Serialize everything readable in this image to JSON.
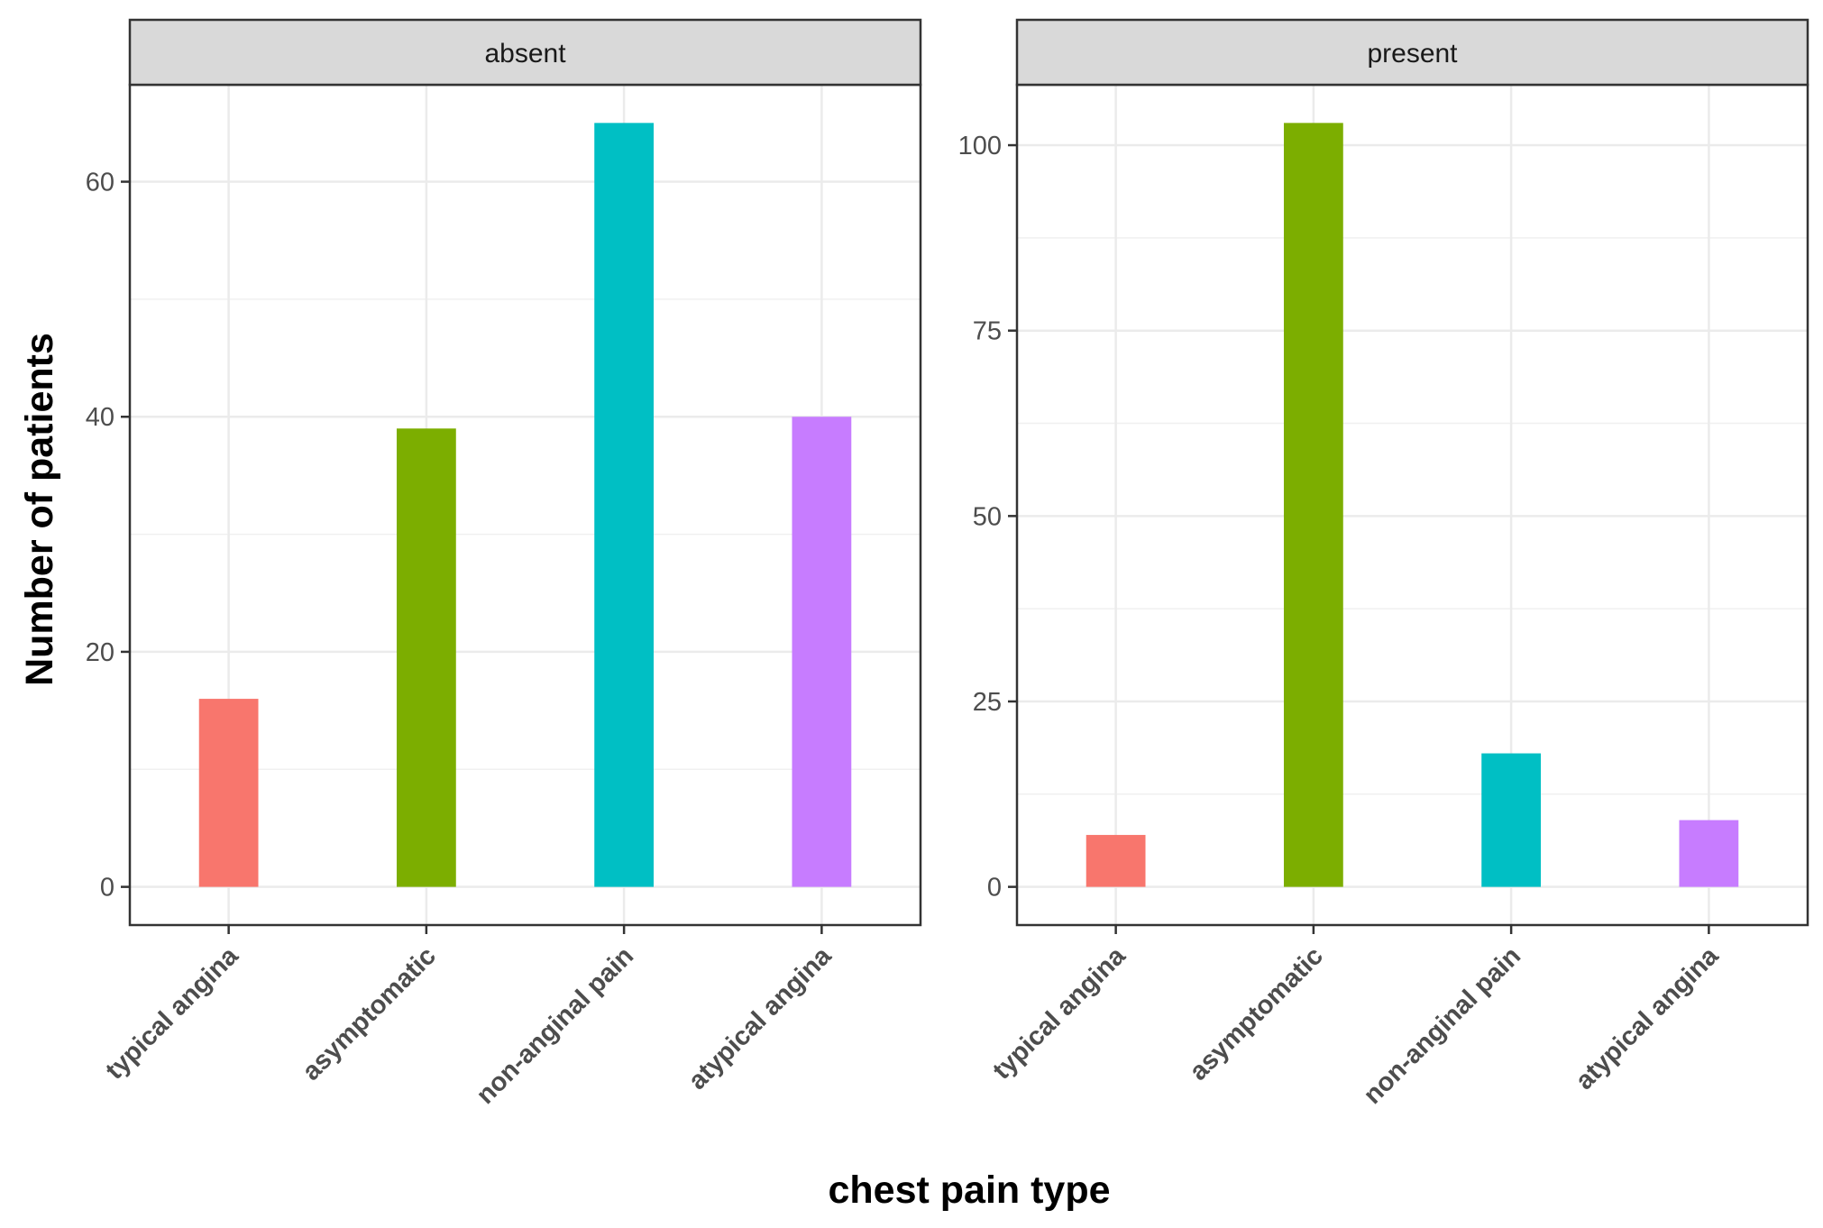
{
  "chart_data": {
    "type": "bar",
    "xlabel": "chest pain type",
    "ylabel": "Number of patients",
    "categories": [
      "typical angina",
      "asymptomatic",
      "non-anginal pain",
      "atypical angina"
    ],
    "colors": [
      "#F8766D",
      "#7CAE00",
      "#00BFC4",
      "#C77CFF"
    ],
    "grid": true,
    "facets": [
      {
        "label": "absent",
        "values": [
          16,
          39,
          65,
          40
        ],
        "ylim": [
          -3.25,
          68.25
        ],
        "yticks": [
          0,
          20,
          40,
          60
        ],
        "yminor": [
          10,
          30,
          50
        ]
      },
      {
        "label": "present",
        "values": [
          7,
          103,
          18,
          9
        ],
        "ylim": [
          -5.15,
          108.15
        ],
        "yticks": [
          0,
          25,
          50,
          75,
          100
        ],
        "yminor": [
          12.5,
          37.5,
          62.5,
          87.5
        ]
      }
    ]
  }
}
